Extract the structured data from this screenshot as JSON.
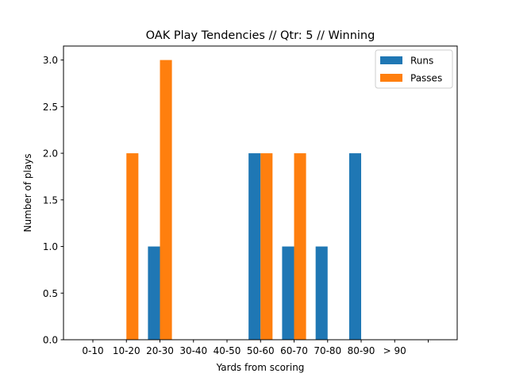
{
  "chart_data": {
    "type": "bar",
    "title": "OAK Play Tendencies // Qtr: 5 // Winning",
    "xlabel": "Yards from scoring",
    "ylabel": "Number of plays",
    "categories": [
      "0-10",
      "10-20",
      "20-30",
      "30-40",
      "40-50",
      "50-60",
      "60-70",
      "70-80",
      "80-90",
      "> 90"
    ],
    "series": [
      {
        "name": "Runs",
        "color": "#1f77b4",
        "values": [
          0,
          0,
          1,
          0,
          0,
          2,
          1,
          1,
          2,
          0
        ]
      },
      {
        "name": "Passes",
        "color": "#ff7f0e",
        "values": [
          0,
          2,
          3,
          0,
          0,
          2,
          2,
          0,
          0,
          0
        ]
      }
    ],
    "ylim": [
      0,
      3.15
    ],
    "yticks": [
      "0.0",
      "0.5",
      "1.0",
      "1.5",
      "2.0",
      "2.5",
      "3.0"
    ],
    "legend": "top-right",
    "grid": false
  }
}
